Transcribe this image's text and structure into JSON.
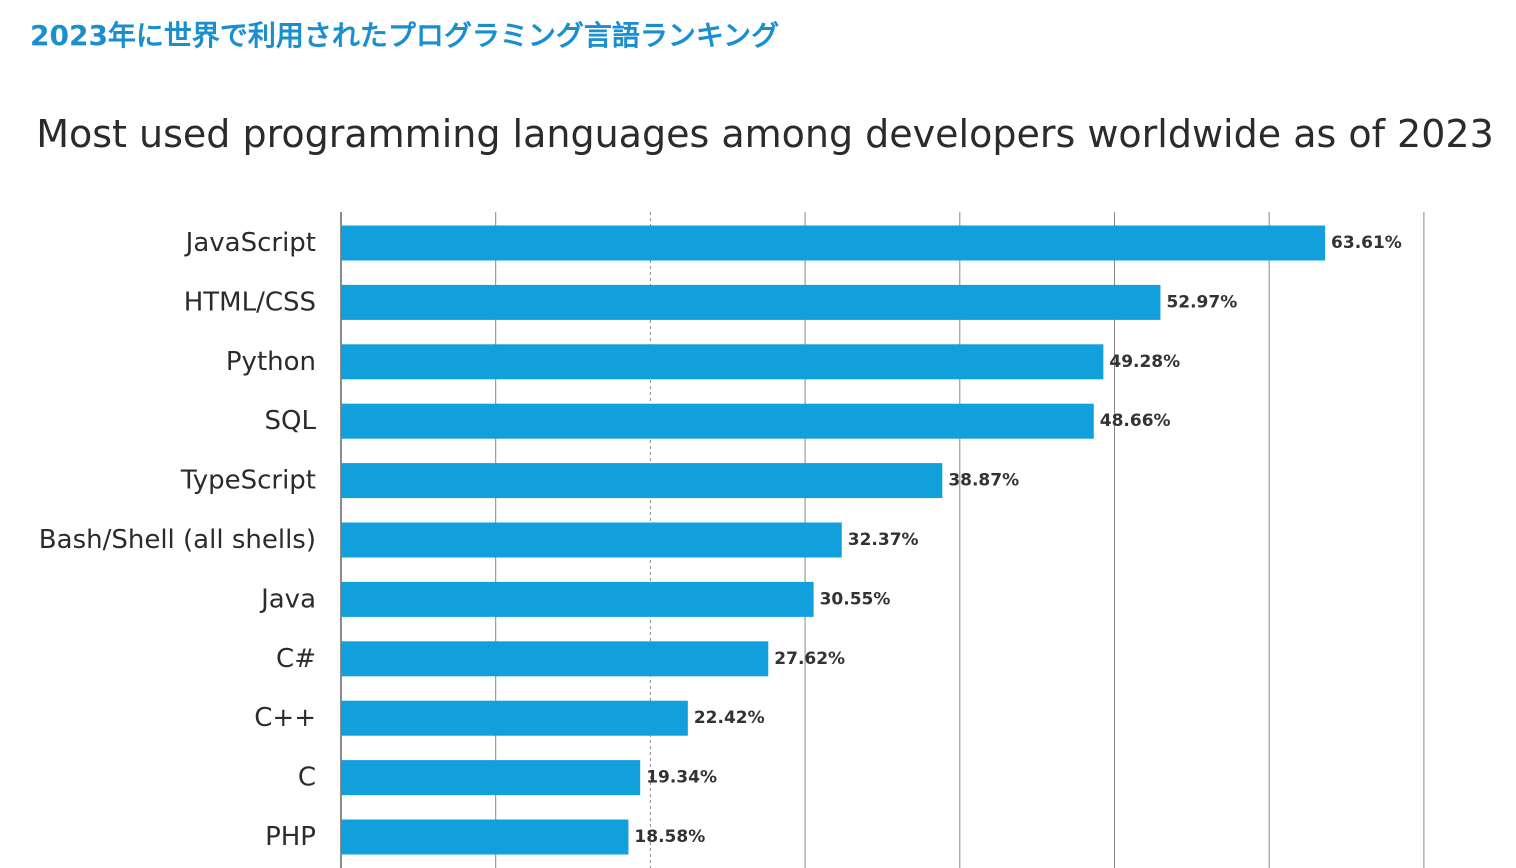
{
  "heading": "2023年に世界で利用されたプログラミング言語ランキング",
  "colors": {
    "heading": "#1a8fcf",
    "bar": "#12a0dc",
    "gridline": "#888888",
    "axis": "#666666",
    "text": "#2b2b2b"
  },
  "chart_data": {
    "type": "bar",
    "orientation": "horizontal",
    "title": "Most used programming languages among developers worldwide as of 2023",
    "categories": [
      "JavaScript",
      "HTML/CSS",
      "Python",
      "SQL",
      "TypeScript",
      "Bash/Shell (all shells)",
      "Java",
      "C#",
      "C++",
      "C",
      "PHP"
    ],
    "values": [
      63.61,
      52.97,
      49.28,
      48.66,
      38.87,
      32.37,
      30.55,
      27.62,
      22.42,
      19.34,
      18.58
    ],
    "value_labels": [
      "63.61%",
      "52.97%",
      "49.28%",
      "48.66%",
      "38.87%",
      "32.37%",
      "30.55%",
      "27.62%",
      "22.42%",
      "19.34%",
      "18.58%"
    ],
    "xlim": [
      0,
      70
    ],
    "x_gridlines": [
      10,
      20,
      30,
      40,
      50,
      60,
      70
    ],
    "dashed_gridline": 20,
    "grid": true,
    "legend": "none"
  }
}
